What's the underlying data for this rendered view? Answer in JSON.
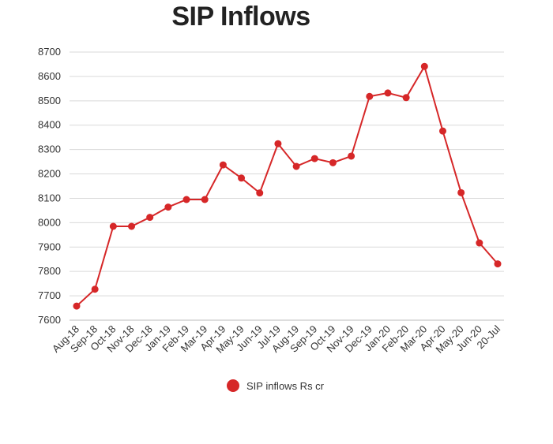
{
  "chart_data": {
    "type": "line",
    "title": "SIP Inflows",
    "xlabel": "",
    "ylabel": "",
    "ylim": [
      7600,
      8700
    ],
    "yticks": [
      7600,
      7700,
      7800,
      7900,
      8000,
      8100,
      8200,
      8300,
      8400,
      8500,
      8600,
      8700
    ],
    "grid": true,
    "legend_position": "bottom",
    "categories": [
      "Aug-18",
      "Sep-18",
      "Oct-18",
      "Nov-18",
      "Dec-18",
      "Jan-19",
      "Feb-19",
      "Mar-19",
      "Apr-19",
      "May-19",
      "Jun-19",
      "Jul-19",
      "Aug-19",
      "Sep-19",
      "Oct-19",
      "Nov-19",
      "Dec-19",
      "Jan-20",
      "Feb-20",
      "Mar-20",
      "Apr-20",
      "May-20",
      "Jun-20",
      "20-Jul"
    ],
    "series": [
      {
        "name": "SIP inflows Rs cr",
        "color": "#d62728",
        "values": [
          7658,
          7727,
          7985,
          7985,
          8022,
          8064,
          8095,
          8095,
          8237,
          8183,
          8122,
          8324,
          8231,
          8263,
          8246,
          8273,
          8518,
          8532,
          8513,
          8641,
          8376,
          8123,
          7917,
          7831
        ]
      }
    ]
  }
}
